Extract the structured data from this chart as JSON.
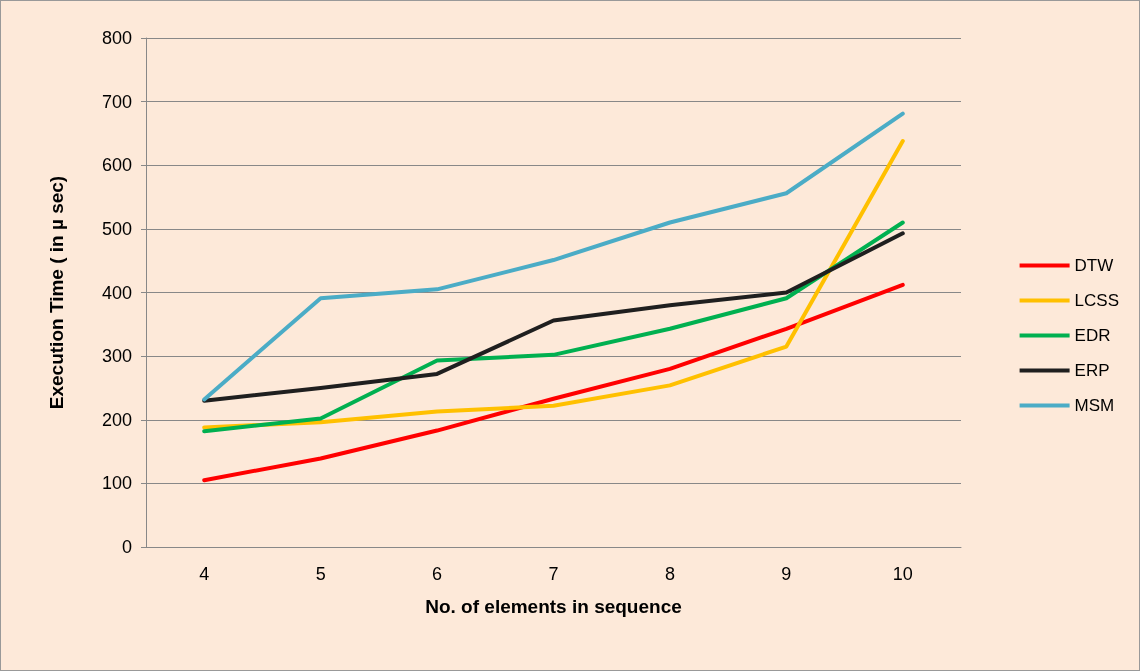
{
  "chart_data": {
    "type": "line",
    "xlabel": "No. of elements in sequence",
    "ylabel": "Execution Time ( in µ sec)",
    "categories": [
      "4",
      "5",
      "6",
      "7",
      "8",
      "9",
      "10"
    ],
    "series": [
      {
        "name": "DTW",
        "color": "#ff0000",
        "values": [
          105,
          139,
          183,
          233,
          280,
          343,
          412
        ]
      },
      {
        "name": "LCSS",
        "color": "#ffc000",
        "values": [
          188,
          196,
          213,
          222,
          254,
          315,
          638
        ]
      },
      {
        "name": "EDR",
        "color": "#00b050",
        "values": [
          182,
          202,
          293,
          302,
          343,
          391,
          510
        ]
      },
      {
        "name": "ERP",
        "color": "#1f1f1f",
        "values": [
          230,
          250,
          272,
          356,
          380,
          400,
          493
        ]
      },
      {
        "name": "MSM",
        "color": "#4bacc6",
        "values": [
          232,
          391,
          405,
          451,
          510,
          556,
          681
        ]
      }
    ],
    "ylim": [
      0,
      800
    ],
    "yticks": [
      0,
      100,
      200,
      300,
      400,
      500,
      600,
      700,
      800
    ],
    "grid": "y",
    "legend": "right",
    "marker": "none",
    "line_style": "solid"
  }
}
